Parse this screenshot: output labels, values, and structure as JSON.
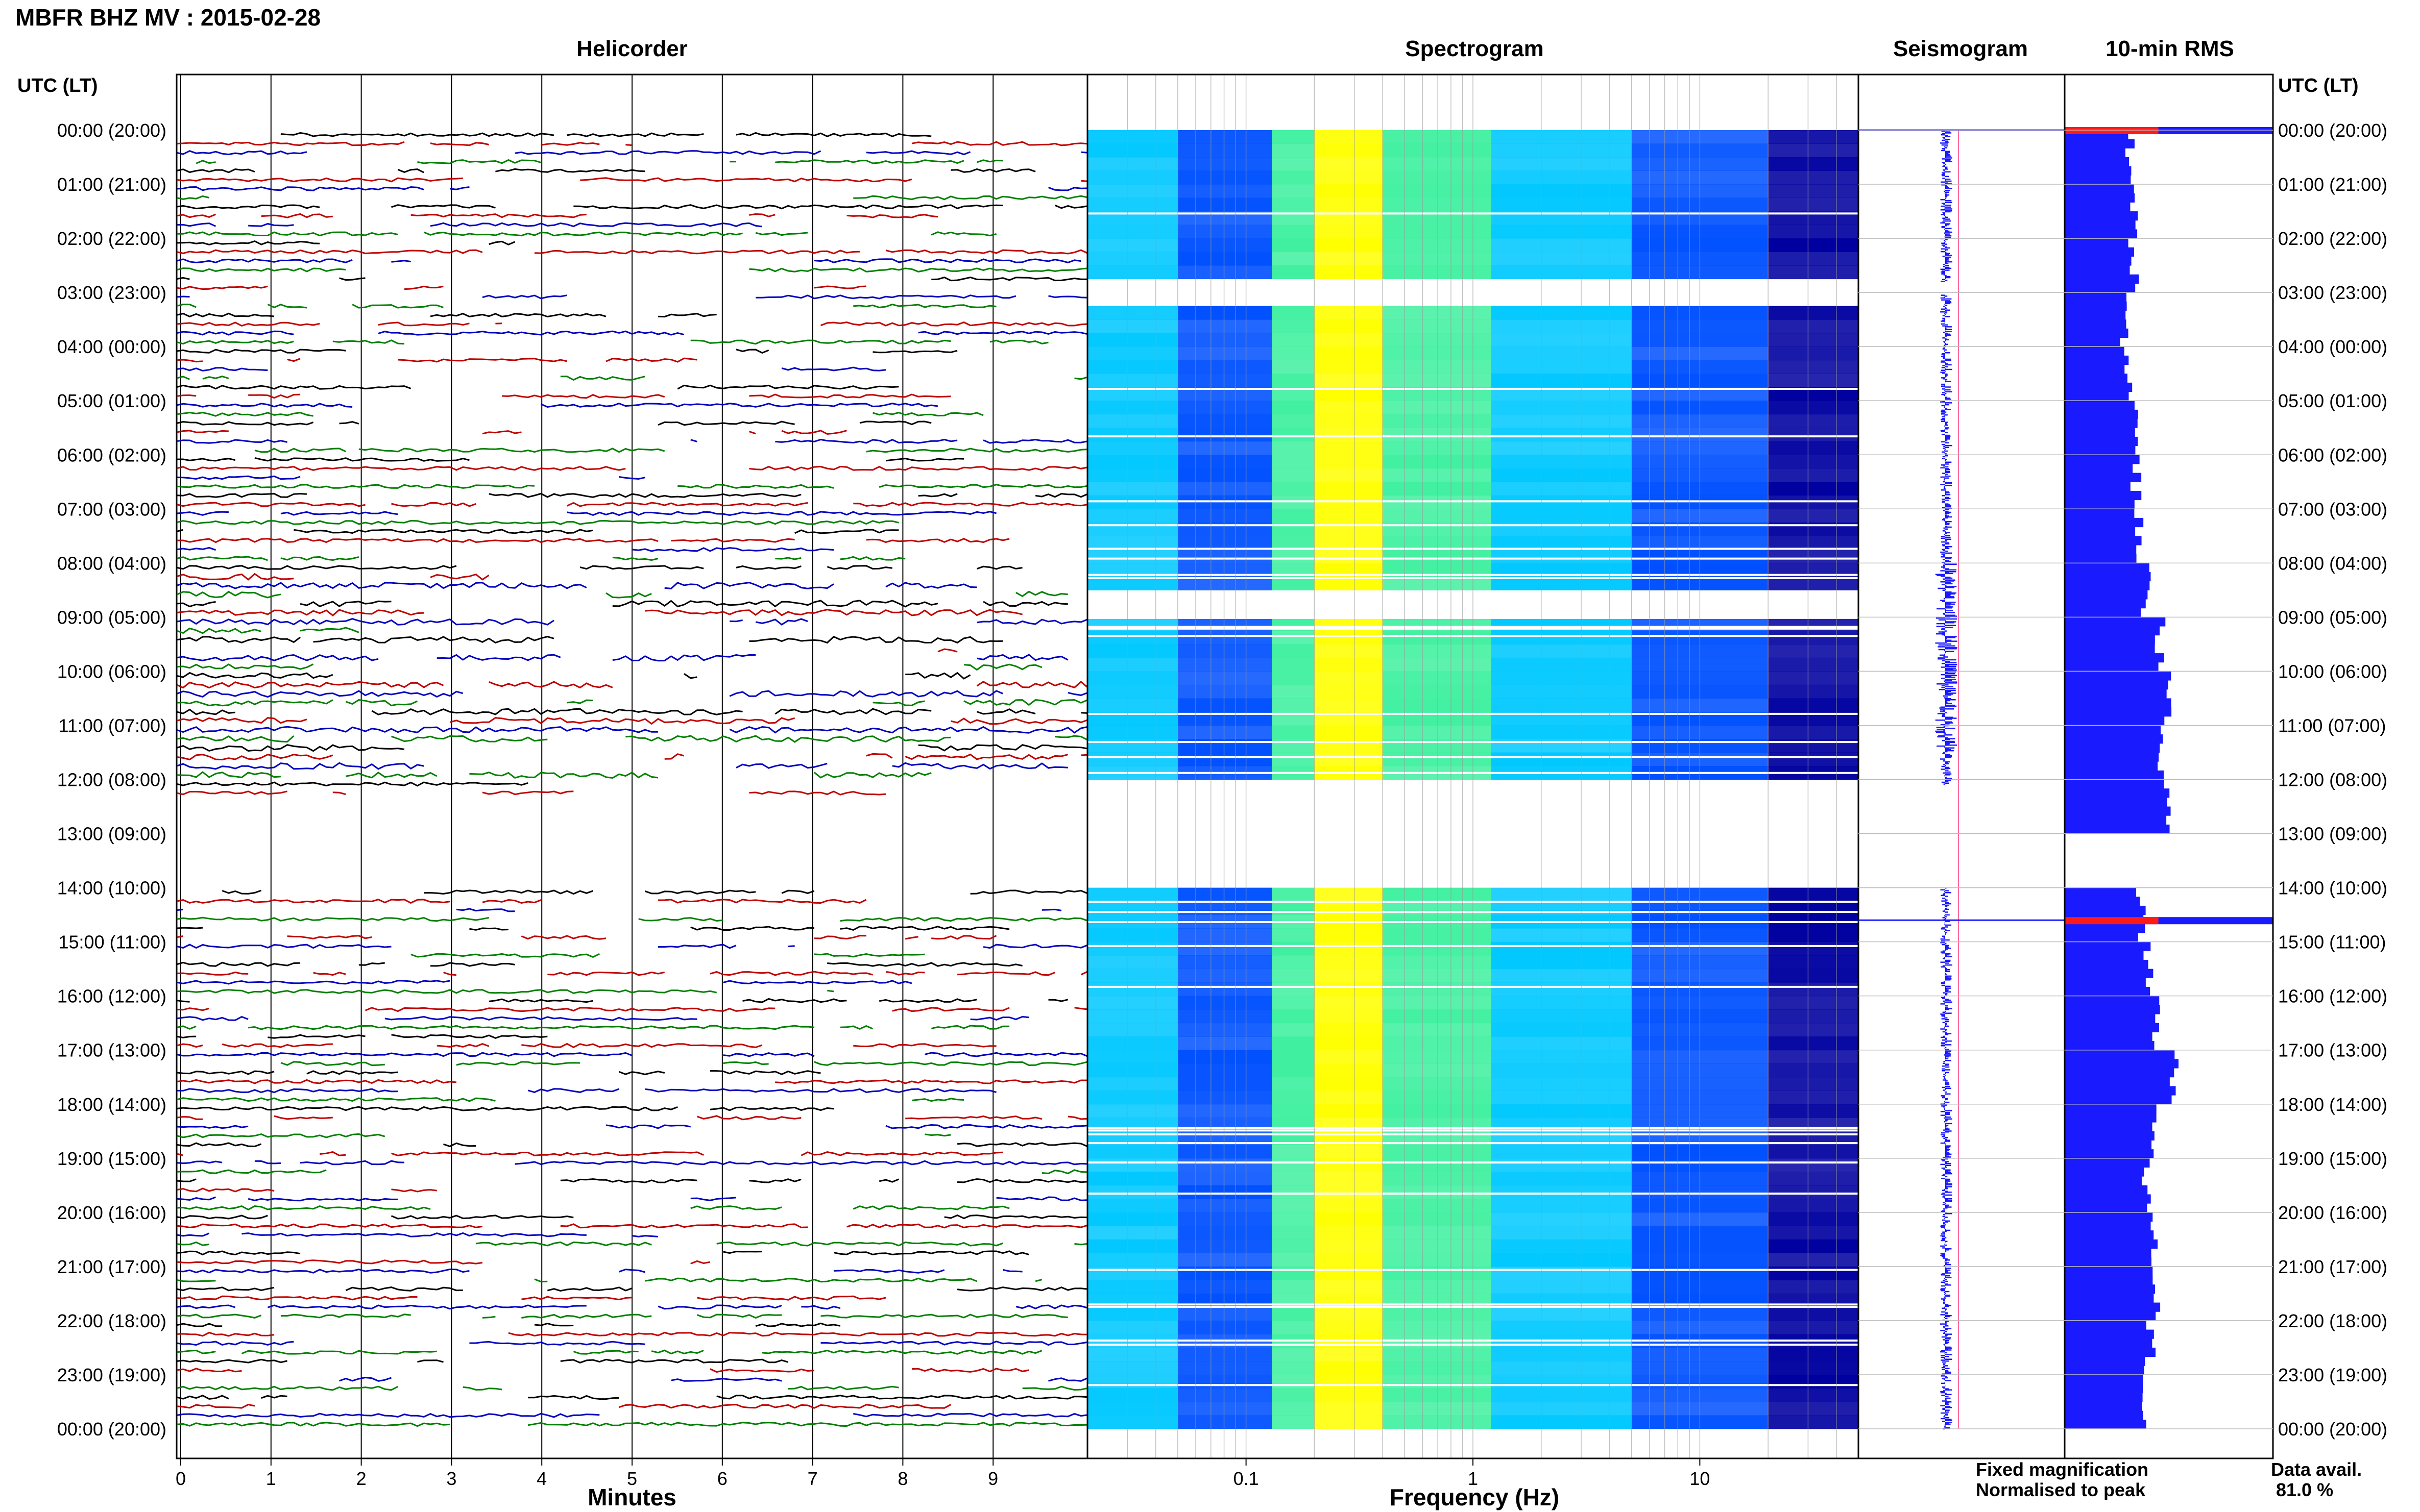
{
  "title": "MBFR BHZ MV : 2015-02-28",
  "panels": {
    "helicorder": "Helicorder",
    "spectrogram": "Spectrogram",
    "seismogram": "Seismogram",
    "rms": "10-min RMS"
  },
  "time_axis_title": "UTC (LT)",
  "time_labels": [
    "00:00 (20:00)",
    "01:00 (21:00)",
    "02:00 (22:00)",
    "03:00 (23:00)",
    "04:00 (00:00)",
    "05:00 (01:00)",
    "06:00 (02:00)",
    "07:00 (03:00)",
    "08:00 (04:00)",
    "09:00 (05:00)",
    "10:00 (06:00)",
    "11:00 (07:00)",
    "12:00 (08:00)",
    "13:00 (09:00)",
    "14:00 (10:00)",
    "15:00 (11:00)",
    "16:00 (12:00)",
    "17:00 (13:00)",
    "18:00 (14:00)",
    "19:00 (15:00)",
    "20:00 (16:00)",
    "21:00 (17:00)",
    "22:00 (18:00)",
    "23:00 (19:00)",
    "00:00 (20:00)"
  ],
  "legend": {
    "fixed": "Fixed magnification",
    "normalised": "Normalised to peak",
    "fixed_color": "#1a1aff",
    "normalised_color": "#ff1a1a"
  },
  "data_avail": {
    "label": "Data avail.",
    "value": "81.0 %"
  },
  "chart_data": [
    {
      "type": "line",
      "panel": "Helicorder",
      "xlabel": "Minutes",
      "xlim": [
        0,
        10
      ],
      "x_ticks": [
        "0",
        "1",
        "2",
        "3",
        "4",
        "5",
        "6",
        "7",
        "8",
        "9"
      ],
      "trace_colors": [
        "#000000",
        "#c00000",
        "#0000c0",
        "#008000"
      ],
      "gaps_hours": [
        [
          12.3,
          14.0
        ]
      ]
    },
    {
      "type": "heatmap",
      "panel": "Spectrogram",
      "xlabel": "Frequency (Hz)",
      "xscale": "log",
      "xlim": [
        0.02,
        50
      ],
      "x_ticks": [
        "0.1",
        "1",
        "10"
      ],
      "gaps_hours": [
        [
          2.7,
          3.1
        ],
        [
          4.3,
          4.5
        ],
        [
          8.5,
          9.0
        ],
        [
          12.0,
          14.0
        ]
      ],
      "colormap": [
        "#0000a0",
        "#0050ff",
        "#00c8ff",
        "#40f0a0",
        "#ffff00"
      ]
    },
    {
      "type": "line",
      "panel": "Seismogram",
      "gaps_hours": [
        [
          2.8,
          3.05
        ],
        [
          12.1,
          14.0
        ]
      ],
      "normalised_peaks_hours": [
        0.0,
        14.6
      ]
    },
    {
      "type": "bar",
      "panel": "10-min RMS",
      "orientation": "horizontal",
      "categories": [
        "00:00",
        "01:00",
        "02:00",
        "03:00",
        "04:00",
        "05:00",
        "06:00",
        "07:00",
        "08:00",
        "09:00",
        "10:00",
        "11:00",
        "12:00",
        "13:00",
        "14:00",
        "15:00",
        "16:00",
        "17:00",
        "18:00",
        "19:00",
        "20:00",
        "21:00",
        "22:00",
        "23:00"
      ],
      "values": [
        0.32,
        0.34,
        0.33,
        0.29,
        0.31,
        0.33,
        0.34,
        0.36,
        0.39,
        0.46,
        0.5,
        0.46,
        0.48,
        0,
        0.36,
        0.4,
        0.43,
        0.52,
        0.44,
        0.4,
        0.42,
        0.44,
        0.41,
        0.37
      ],
      "normalised_peaks": [
        {
          "hour": 0.0,
          "value": 1.0
        },
        {
          "hour": 14.6,
          "value": 1.0
        }
      ]
    }
  ]
}
